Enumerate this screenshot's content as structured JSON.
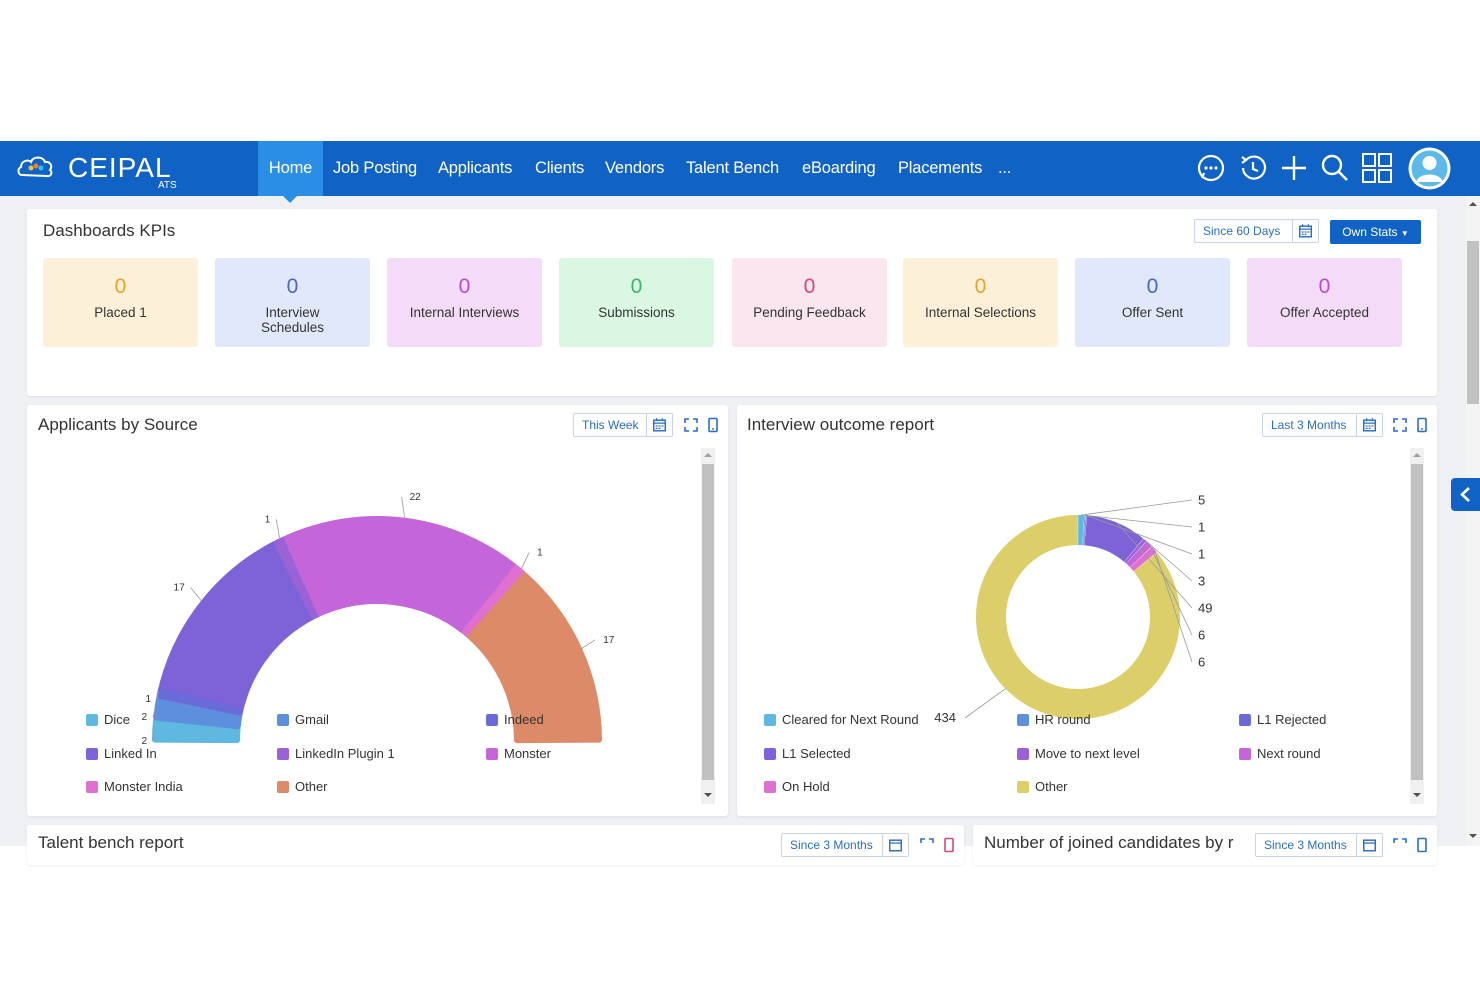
{
  "brand": {
    "name": "CEIPAL",
    "sub": "ATS"
  },
  "nav": {
    "items": [
      "Home",
      "Job Posting",
      "Applicants",
      "Clients",
      "Vendors",
      "Talent Bench",
      "eBoarding",
      "Placements",
      "..."
    ],
    "active": "Home",
    "icons": [
      "chat-icon",
      "history-icon",
      "plus-icon",
      "search-icon",
      "grid-icon",
      "avatar"
    ]
  },
  "kpis": {
    "title": "Dashboards KPIs",
    "range": "Since 60 Days",
    "stats_button": "Own Stats",
    "items": [
      {
        "value": "0",
        "label": "Placed 1",
        "bg": "#fdf0d8",
        "color": "#e8a325"
      },
      {
        "value": "0",
        "label": "Interview Schedules",
        "bg": "#e2e8fb",
        "color": "#4a66c4"
      },
      {
        "value": "0",
        "label": "Internal Interviews",
        "bg": "#f4dbf7",
        "color": "#b84bd0"
      },
      {
        "value": "0",
        "label": "Submissions",
        "bg": "#d9f7e2",
        "color": "#3cb468"
      },
      {
        "value": "0",
        "label": "Pending Feedback",
        "bg": "#fbe5ee",
        "color": "#d9457c"
      },
      {
        "value": "0",
        "label": "Internal Selections",
        "bg": "#fdf0d8",
        "color": "#e8a325"
      },
      {
        "value": "0",
        "label": "Offer Sent",
        "bg": "#e2e8fb",
        "color": "#4a66c4"
      },
      {
        "value": "0",
        "label": "Offer Accepted",
        "bg": "#f4dbf7",
        "color": "#b84bd0"
      }
    ]
  },
  "source_panel": {
    "title": "Applicants by Source",
    "range": "This Week",
    "legend": [
      {
        "label": "Dice",
        "color": "#5fb8df"
      },
      {
        "label": "Gmail",
        "color": "#5e8fdc"
      },
      {
        "label": "Indeed",
        "color": "#6a6bd8"
      },
      {
        "label": "Linked In",
        "color": "#7d62d8"
      },
      {
        "label": "LinkedIn Plugin 1",
        "color": "#9b62d8"
      },
      {
        "label": "Monster",
        "color": "#c466d9"
      },
      {
        "label": "Monster India",
        "color": "#df6fd0"
      },
      {
        "label": "Other",
        "color": "#dc8a67"
      }
    ]
  },
  "outcome_panel": {
    "title": "Interview outcome report",
    "range": "Last 3 Months",
    "legend": [
      {
        "label": "Cleared for Next Round",
        "color": "#5fb8df"
      },
      {
        "label": "HR round",
        "color": "#5e8fdc"
      },
      {
        "label": "L1 Rejected",
        "color": "#6a6bd8"
      },
      {
        "label": "L1 Selected",
        "color": "#7d62d8"
      },
      {
        "label": "Move to next level",
        "color": "#9b62d8"
      },
      {
        "label": "Next round",
        "color": "#c466d9"
      },
      {
        "label": "On Hold",
        "color": "#df6fd0"
      },
      {
        "label": "Other",
        "color": "#dccf6a"
      }
    ]
  },
  "bottom_panels": {
    "talent": {
      "title": "Talent bench report",
      "range": "Since 3 Months"
    },
    "joined": {
      "title": "Number of joined candidates by r",
      "range": "Since 3 Months"
    }
  },
  "chart_data": [
    {
      "type": "pie",
      "subtype": "semicircle-donut",
      "categories": [
        "Dice",
        "Gmail",
        "Indeed",
        "Linked In",
        "LinkedIn Plugin 1",
        "Monster",
        "Monster India",
        "Other"
      ],
      "values": [
        2,
        2,
        1,
        17,
        1,
        22,
        1,
        17
      ],
      "colors": [
        "#5fb8df",
        "#5e8fdc",
        "#6a6bd8",
        "#7d62d8",
        "#9b62d8",
        "#c466d9",
        "#df6fd0",
        "#dc8a67"
      ],
      "legend": "bottom"
    },
    {
      "type": "pie",
      "subtype": "donut",
      "categories": [
        "Cleared for Next Round",
        "HR round",
        "L1 Rejected",
        "L1 Selected",
        "Move to next level",
        "Next round",
        "On Hold",
        "Other"
      ],
      "values": [
        5,
        1,
        1,
        49,
        3,
        6,
        6,
        434
      ],
      "label_order": [
        "5",
        "1",
        "1",
        "3",
        "49",
        "6",
        "6"
      ],
      "colors": [
        "#5fb8df",
        "#5e8fdc",
        "#6a6bd8",
        "#7d62d8",
        "#9b62d8",
        "#c466d9",
        "#df6fd0",
        "#dccf6a"
      ],
      "legend": "bottom"
    }
  ]
}
